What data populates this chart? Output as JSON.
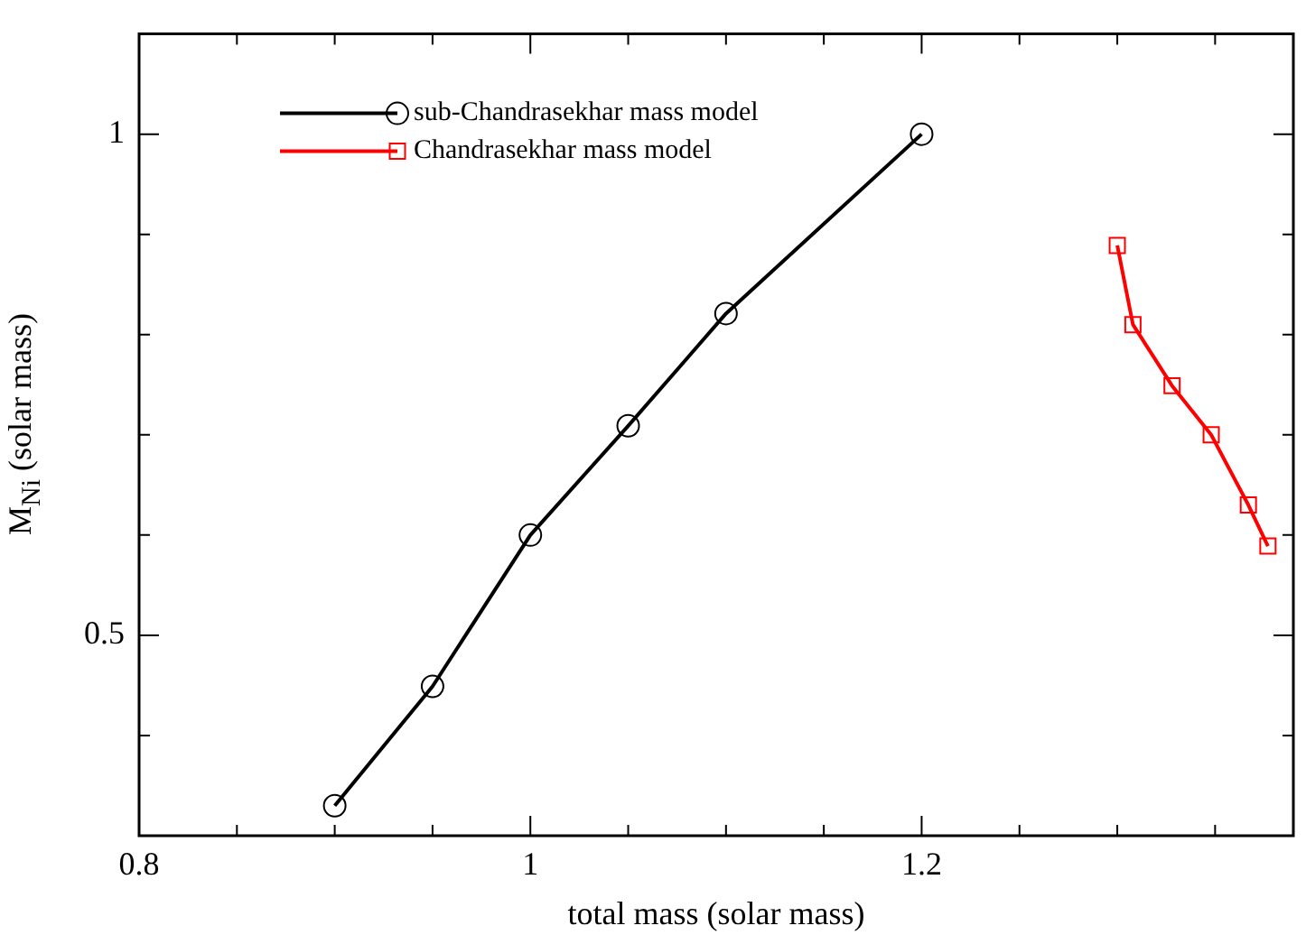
{
  "chart_data": {
    "type": "line",
    "xlabel": "total mass (solar mass)",
    "ylabel": "M$_{Ni}$ (solar mass)",
    "xlim": [
      0.8,
      1.39
    ],
    "ylim": [
      0.3,
      1.1
    ],
    "xticks": [
      0.8,
      {
        "value": 0.85,
        "label": null
      },
      {
        "value": 0.9,
        "label": null
      },
      {
        "value": 0.95,
        "label": null
      },
      1,
      {
        "value": 1.05,
        "label": null
      },
      {
        "value": 1.1,
        "label": null
      },
      {
        "value": 1.15,
        "label": null
      },
      1.2,
      {
        "value": 1.25,
        "label": null
      },
      {
        "value": 1.3,
        "label": null
      },
      {
        "value": 1.35,
        "label": null
      }
    ],
    "yticks": [
      {
        "value": 0.4,
        "label": null
      },
      0.5,
      {
        "value": 0.6,
        "label": null
      },
      {
        "value": 0.7,
        "label": null
      },
      {
        "value": 0.8,
        "label": null
      },
      {
        "value": 0.9,
        "label": null
      },
      1
    ],
    "grid": false,
    "legend": "top left",
    "line_style": "solid",
    "series": [
      {
        "name": "sub-Chandrasekhar mass model",
        "color": "#000000",
        "marker": "circle",
        "x": [
          0.9,
          0.95,
          1.0,
          1.05,
          1.1,
          1.2
        ],
        "values": [
          0.33,
          0.449,
          0.6,
          0.709,
          0.821,
          1.0
        ]
      },
      {
        "name": "Chandrasekhar mass model",
        "color": "#ff0000",
        "marker": "square",
        "x": [
          1.3,
          1.308,
          1.328,
          1.348,
          1.367,
          1.377
        ],
        "values": [
          0.889,
          0.81,
          0.749,
          0.7,
          0.63,
          0.589
        ]
      }
    ]
  }
}
